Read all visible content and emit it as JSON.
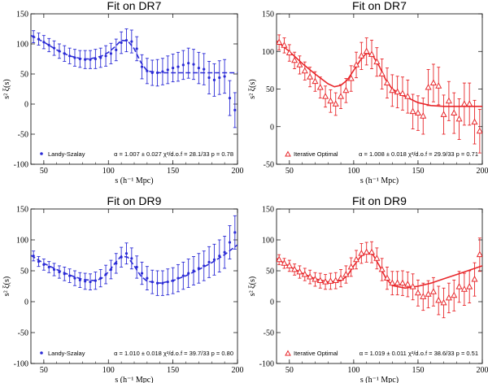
{
  "chart_data": [
    {
      "type": "scatter",
      "title": "Fit on DR7",
      "xlabel": "s (h⁻¹ Mpc)",
      "ylabel": "s² ξ(s)",
      "xlim": [
        40,
        200
      ],
      "ylim": [
        -100,
        150
      ],
      "xticks": [
        50,
        100,
        150,
        200
      ],
      "yticks": [
        -100,
        -50,
        0,
        50,
        100,
        150
      ],
      "color": "#2b2bd6",
      "marker": "dot",
      "fit_style": "dashed",
      "legend_label": "Landy-Szalay",
      "legend_stats": "α = 1.007 ± 0.027   χ²/d.o.f = 28.1/33   p = 0.78",
      "points": {
        "x": [
          42,
          46,
          50,
          54,
          58,
          62,
          66,
          70,
          74,
          78,
          82,
          86,
          90,
          94,
          98,
          102,
          106,
          110,
          114,
          118,
          122,
          126,
          130,
          134,
          138,
          142,
          146,
          150,
          154,
          158,
          162,
          166,
          170,
          174,
          178,
          182,
          186,
          190,
          194,
          198
        ],
        "y": [
          112,
          108,
          103,
          98,
          93,
          88,
          84,
          80,
          77,
          75,
          74,
          74,
          75,
          77,
          80,
          84,
          90,
          102,
          106,
          104,
          92,
          62,
          55,
          52,
          52,
          54,
          57,
          60,
          62,
          65,
          68,
          66,
          60,
          58,
          44,
          40,
          44,
          46,
          10,
          -10
        ],
        "err": [
          10,
          10,
          11,
          11,
          12,
          12,
          13,
          13,
          14,
          14,
          15,
          15,
          16,
          16,
          17,
          17,
          18,
          18,
          19,
          19,
          20,
          20,
          21,
          21,
          22,
          22,
          23,
          23,
          24,
          24,
          25,
          25,
          26,
          26,
          27,
          27,
          28,
          28,
          29,
          29
        ]
      },
      "fit": {
        "x": [
          40,
          50,
          60,
          70,
          80,
          85,
          90,
          95,
          100,
          105,
          110,
          115,
          120,
          125,
          130,
          140,
          150,
          160,
          170,
          180,
          190,
          200
        ],
        "y": [
          114,
          103,
          90,
          80,
          75,
          75,
          77,
          80,
          86,
          95,
          106,
          105,
          92,
          70,
          55,
          52,
          52,
          52,
          52,
          52,
          52,
          52
        ]
      }
    },
    {
      "type": "scatter",
      "title": "Fit on DR7",
      "xlabel": "s (h⁻¹ Mpc)",
      "ylabel": "s² ξ(s)",
      "xlim": [
        40,
        200
      ],
      "ylim": [
        -50,
        150
      ],
      "xticks": [
        50,
        100,
        150,
        200
      ],
      "yticks": [
        -50,
        0,
        50,
        100,
        150
      ],
      "color": "#e8272b",
      "marker": "triangle",
      "fit_style": "solid",
      "legend_label": "Iterative Optimal",
      "legend_stats": "α = 1.008 ± 0.018   χ²/d.o.f = 29.9/33   p = 0.71",
      "points": {
        "x": [
          42,
          46,
          50,
          54,
          58,
          62,
          66,
          70,
          74,
          78,
          82,
          86,
          90,
          94,
          98,
          102,
          106,
          110,
          114,
          118,
          122,
          126,
          130,
          134,
          138,
          142,
          146,
          150,
          154,
          158,
          162,
          166,
          170,
          174,
          178,
          182,
          186,
          190,
          194,
          198
        ],
        "y": [
          112,
          108,
          98,
          88,
          82,
          74,
          66,
          60,
          52,
          40,
          34,
          30,
          40,
          48,
          64,
          82,
          94,
          100,
          96,
          86,
          70,
          58,
          48,
          46,
          44,
          40,
          20,
          18,
          14,
          52,
          58,
          54,
          16,
          34,
          18,
          10,
          30,
          30,
          6,
          -6
        ],
        "err": [
          10,
          10,
          11,
          11,
          12,
          12,
          13,
          13,
          14,
          14,
          15,
          15,
          16,
          16,
          17,
          17,
          18,
          18,
          19,
          19,
          20,
          20,
          21,
          21,
          22,
          22,
          23,
          23,
          24,
          24,
          25,
          25,
          26,
          26,
          27,
          27,
          28,
          28,
          29,
          29
        ]
      },
      "fit": {
        "x": [
          40,
          50,
          60,
          70,
          80,
          85,
          90,
          95,
          100,
          105,
          110,
          115,
          120,
          125,
          130,
          140,
          150,
          160,
          170,
          180,
          190,
          200
        ],
        "y": [
          114,
          100,
          84,
          70,
          57,
          53,
          55,
          62,
          75,
          88,
          98,
          94,
          80,
          62,
          50,
          40,
          32,
          28,
          27,
          27,
          27,
          27
        ]
      }
    },
    {
      "type": "scatter",
      "title": "Fit on DR9",
      "xlabel": "s (h⁻¹ Mpc)",
      "ylabel": "s² ξ(s)",
      "xlim": [
        40,
        200
      ],
      "ylim": [
        -100,
        150
      ],
      "xticks": [
        50,
        100,
        150,
        200
      ],
      "yticks": [
        -100,
        -50,
        0,
        50,
        100,
        150
      ],
      "color": "#2b2bd6",
      "marker": "dot",
      "fit_style": "dashed",
      "legend_label": "Landy-Szalay",
      "legend_stats": "α = 1.010 ± 0.018   χ²/d.o.f = 39.7/33   p = 0.80",
      "points": {
        "x": [
          42,
          46,
          50,
          54,
          58,
          62,
          66,
          70,
          74,
          78,
          82,
          86,
          90,
          94,
          98,
          102,
          106,
          110,
          114,
          118,
          122,
          126,
          130,
          134,
          138,
          142,
          146,
          150,
          154,
          158,
          162,
          166,
          170,
          174,
          178,
          182,
          186,
          190,
          194,
          198
        ],
        "y": [
          74,
          65,
          60,
          56,
          52,
          48,
          45,
          42,
          38,
          35,
          33,
          32,
          34,
          38,
          44,
          52,
          62,
          72,
          78,
          70,
          56,
          46,
          38,
          32,
          30,
          30,
          32,
          34,
          38,
          42,
          46,
          50,
          54,
          58,
          64,
          68,
          74,
          80,
          96,
          112
        ],
        "err": [
          8,
          8,
          9,
          9,
          10,
          10,
          11,
          11,
          12,
          12,
          13,
          13,
          14,
          14,
          15,
          15,
          16,
          16,
          17,
          17,
          18,
          18,
          19,
          19,
          20,
          20,
          21,
          21,
          22,
          22,
          23,
          23,
          24,
          24,
          25,
          25,
          26,
          26,
          27,
          27
        ]
      },
      "fit": {
        "x": [
          40,
          50,
          60,
          70,
          80,
          90,
          95,
          100,
          105,
          110,
          115,
          120,
          125,
          130,
          140,
          150,
          160,
          170,
          180,
          190,
          200
        ],
        "y": [
          75,
          62,
          52,
          43,
          36,
          34,
          38,
          48,
          62,
          74,
          72,
          58,
          42,
          33,
          30,
          34,
          42,
          52,
          63,
          76,
          92
        ]
      }
    },
    {
      "type": "scatter",
      "title": "Fit on DR9",
      "xlabel": "s (h⁻¹ Mpc)",
      "ylabel": "s² ξ(s)",
      "xlim": [
        40,
        200
      ],
      "ylim": [
        -100,
        150
      ],
      "xticks": [
        50,
        100,
        150,
        200
      ],
      "yticks": [
        -100,
        -50,
        0,
        50,
        100,
        150
      ],
      "color": "#e8272b",
      "marker": "triangle",
      "fit_style": "solid",
      "legend_label": "Iterative Optimal",
      "legend_stats": "α = 1.019 ± 0.011   χ²/d.o.f = 38.6/33   p = 0.51",
      "points": {
        "x": [
          42,
          46,
          50,
          54,
          58,
          62,
          66,
          70,
          74,
          78,
          82,
          86,
          90,
          94,
          98,
          102,
          106,
          110,
          114,
          118,
          122,
          126,
          130,
          134,
          138,
          142,
          146,
          150,
          154,
          158,
          162,
          166,
          170,
          174,
          178,
          182,
          186,
          190,
          194,
          198
        ],
        "y": [
          68,
          62,
          58,
          52,
          48,
          44,
          40,
          36,
          34,
          32,
          33,
          34,
          38,
          44,
          56,
          68,
          78,
          80,
          80,
          70,
          52,
          38,
          30,
          30,
          30,
          28,
          24,
          14,
          8,
          12,
          16,
          2,
          -2,
          6,
          10,
          24,
          20,
          24,
          36,
          76
        ],
        "err": [
          8,
          8,
          9,
          9,
          10,
          10,
          11,
          11,
          12,
          12,
          13,
          13,
          14,
          14,
          15,
          15,
          16,
          16,
          17,
          17,
          18,
          18,
          19,
          19,
          20,
          20,
          21,
          21,
          22,
          22,
          23,
          23,
          24,
          24,
          25,
          25,
          26,
          26,
          27,
          27
        ]
      },
      "fit": {
        "x": [
          40,
          50,
          60,
          70,
          80,
          90,
          95,
          100,
          105,
          110,
          115,
          120,
          125,
          130,
          140,
          150,
          160,
          170,
          180,
          190,
          200
        ],
        "y": [
          70,
          57,
          46,
          37,
          32,
          34,
          42,
          58,
          72,
          80,
          76,
          58,
          38,
          26,
          22,
          25,
          30,
          37,
          44,
          51,
          58
        ]
      }
    }
  ]
}
